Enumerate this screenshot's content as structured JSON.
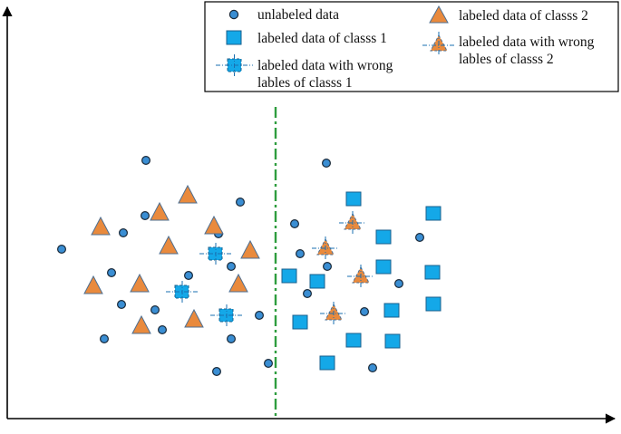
{
  "legend": {
    "unlabeled": "unlabeled data",
    "class1": "labeled data of classs 1",
    "class1_wrong_line1": "labeled data with wrong",
    "class1_wrong_line2": "lables of classs 1",
    "class2": "labeled data of classs 2",
    "class2_wrong_line1": "labeled data with wrong",
    "class2_wrong_line2": "lables of classs 2"
  },
  "icons": {
    "unlabeled": "circle-icon",
    "class1": "square-icon",
    "class1_wrong": "dashed-square-icon",
    "class2": "triangle-icon",
    "class2_wrong": "dashed-triangle-icon",
    "boundary": "dash-dot-line",
    "axes": "arrow-axes"
  },
  "colors": {
    "unlabeled_fill": "#3a8ed3",
    "unlabeled_stroke": "#1a2a3a",
    "class1_fill": "#14a8e8",
    "class1_stroke": "#1a5f8c",
    "class2_fill": "#e98a3d",
    "class2_stroke": "#4e6f91",
    "boundary": "#2f9d3f",
    "axis": "#000000"
  }
}
